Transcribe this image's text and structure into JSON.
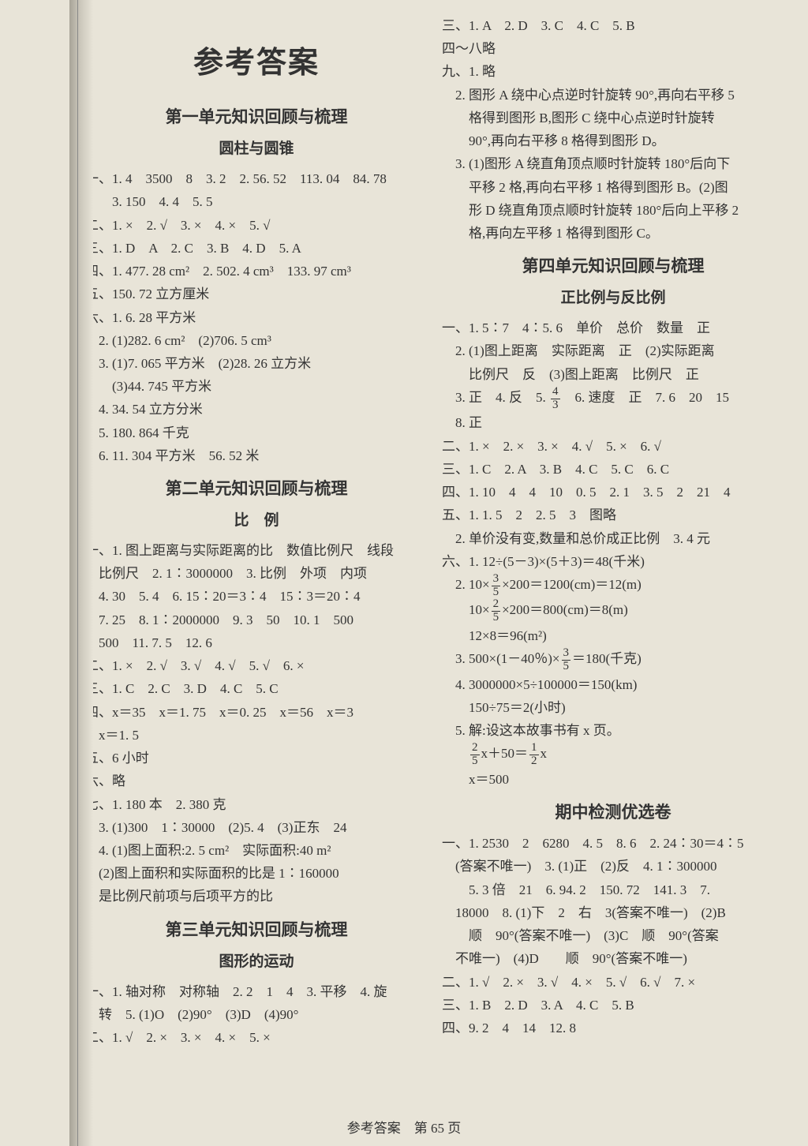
{
  "title": "参考答案",
  "footer": "参考答案　第 65 页",
  "leftCol": {
    "u1": {
      "heading": "第一单元知识回顾与梳理",
      "sub": "圆柱与圆锥",
      "lines": [
        "一、1. 4　3500　8　3. 2　2. 56. 52　113. 04　84. 78",
        "　　3. 150　4. 4　5. 5",
        "二、1. ×　2. √　3. ×　4. ×　5. √",
        "三、1. D　A　2. C　3. B　4. D　5. A",
        "四、1. 477. 28 cm²　2. 502. 4 cm³　133. 97 cm³",
        "五、150. 72 立方厘米",
        "六、1. 6. 28 平方米",
        "　2. (1)282. 6 cm²　(2)706. 5 cm³",
        "　3. (1)7. 065 平方米　(2)28. 26 立方米",
        "　　(3)44. 745 平方米",
        "　4. 34. 54 立方分米",
        "　5. 180. 864 千克",
        "　6. 11. 304 平方米　56. 52 米"
      ]
    },
    "u2": {
      "heading": "第二单元知识回顾与梳理",
      "sub": "比　例",
      "lines": [
        "一、1. 图上距离与实际距离的比　数值比例尺　线段",
        "　比例尺　2. 1∶3000000　3. 比例　外项　内项",
        "　4. 30　5. 4　6. 15∶20＝3∶4　15∶3＝20∶4",
        "　7. 25　8. 1∶2000000　9. 3　50　10. 1　500",
        "　500　11. 7. 5　12. 6",
        "二、1. ×　2. √　3. √　4. √　5. √　6. ×",
        "三、1. C　2. C　3. D　4. C　5. C",
        "四、x＝35　x＝1. 75　x＝0. 25　x＝56　x＝3",
        "　x＝1. 5",
        "五、6 小时",
        "六、略",
        "七、1. 180 本　2. 380 克",
        "　3. (1)300　1∶30000　(2)5. 4　(3)正东　24",
        "　4. (1)图上面积:2. 5 cm²　实际面积:40 m²",
        "　(2)图上面积和实际面积的比是 1∶160000",
        "　是比例尺前项与后项平方的比"
      ]
    },
    "u3": {
      "heading": "第三单元知识回顾与梳理",
      "sub": "图形的运动",
      "lines": [
        "一、1. 轴对称　对称轴　2. 2　1　4　3. 平移　4. 旋",
        "　转　5. (1)O　(2)90°　(3)D　(4)90°",
        "二、1. √　2. ×　3. ×　4. ×　5. ×"
      ]
    }
  },
  "rightCol": {
    "pre": [
      "三、1. A　2. D　3. C　4. C　5. B",
      "四～八略",
      "九、1. 略",
      "　2. 图形 A 绕中心点逆时针旋转 90°,再向右平移 5",
      "　　格得到图形 B,图形 C 绕中心点逆时针旋转",
      "　　90°,再向右平移 8 格得到图形 D。",
      "　3. (1)图形 A 绕直角顶点顺时针旋转 180°后向下",
      "　　平移 2 格,再向右平移 1 格得到图形 B。(2)图",
      "　　形 D 绕直角顶点顺时针旋转 180°后向上平移 2",
      "　　格,再向左平移 1 格得到图形 C。"
    ],
    "u4": {
      "heading": "第四单元知识回顾与梳理",
      "sub": "正比例与反比例",
      "lines1": [
        "一、1. 5∶7　4∶5. 6　单价　总价　数量　正",
        "　2. (1)图上距离　实际距离　正　(2)实际距离",
        "　　比例尺　反　(3)图上距离　比例尺　正"
      ],
      "line_frac3": {
        "pre": "　3. 正　4. 反　5. ",
        "n": "4",
        "d": "3",
        "post": "　6. 速度　正　7. 6　20　15"
      },
      "lines2": [
        "　8. 正",
        "二、1. ×　2. ×　3. ×　4. √　5. ×　6. √",
        "三、1. C　2. A　3. B　4. C　5. C　6. C",
        "四、1. 10　4　4　10　0. 5　2. 1　3. 5　2　21　4",
        "五、1. 1. 5　2　2. 5　3　图略",
        "　2. 单价没有变,数量和总价成正比例　3. 4 元",
        "六、1. 12÷(5－3)×(5＋3)＝48(千米)"
      ],
      "calc_a": {
        "pre": "　2. 10×",
        "n": "3",
        "d": "5",
        "post": "×200＝1200(cm)＝12(m)"
      },
      "calc_b": {
        "pre": "　　10×",
        "n": "2",
        "d": "5",
        "post": "×200＝800(cm)＝8(m)"
      },
      "lines3": [
        "　　12×8＝96(m²)"
      ],
      "calc_c": {
        "pre": "　3. 500×(1－40％)×",
        "n": "3",
        "d": "5",
        "post": "＝180(千克)"
      },
      "lines4": [
        "　4. 3000000×5÷100000＝150(km)",
        "　　150÷75＝2(小时)",
        "　5. 解:设这本故事书有 x 页。"
      ],
      "calc_d": {
        "preN": "2",
        "preD": "5",
        "mid": "x＋50＝",
        "postN": "1",
        "postD": "2",
        "tail": "x"
      },
      "lines5": [
        "　　x＝500"
      ]
    },
    "mid": {
      "heading": "期中检测优选卷",
      "lines": [
        "一、1. 2530　2　6280　4. 5　8. 6　2. 24∶30＝4∶5",
        "　(答案不唯一)　3. (1)正　(2)反　4. 1∶300000",
        "　　5. 3 倍　21　6. 94. 2　150. 72　141. 3　7.",
        "　18000　8. (1)下　2　右　3(答案不唯一)　(2)B",
        "　　顺　90°(答案不唯一)　(3)C　顺　90°(答案",
        "　不唯一)　(4)D　　顺　90°(答案不唯一)",
        "二、1. √　2. ×　3. √　4. ×　5. √　6. √　7. ×",
        "三、1. B　2. D　3. A　4. C　5. B",
        "四、9. 2　4　14　12. 8"
      ]
    }
  }
}
